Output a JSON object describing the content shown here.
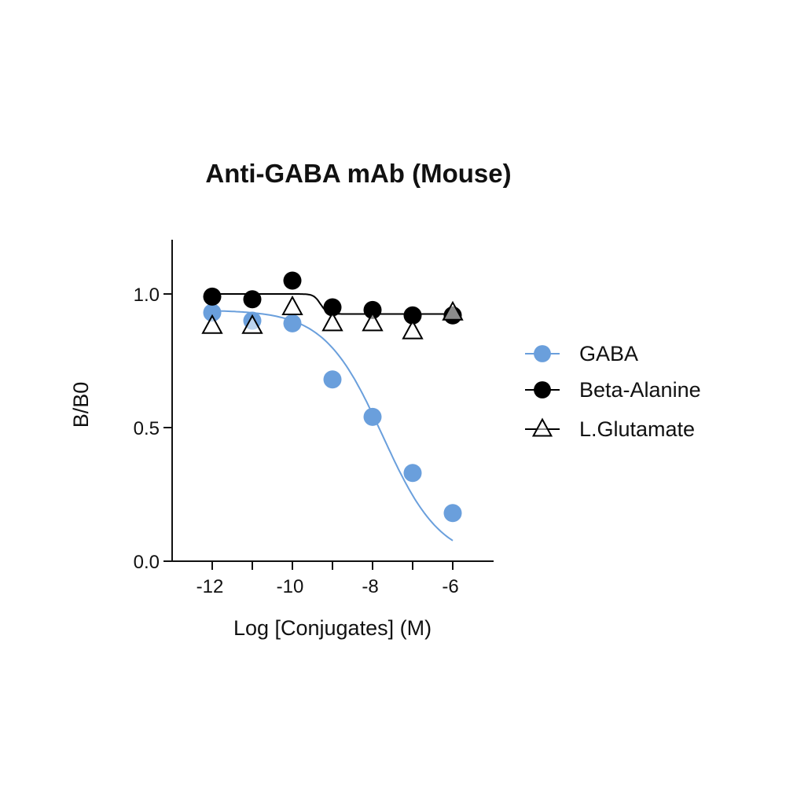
{
  "chart_data": {
    "type": "scatter",
    "title": "Anti-GABA mAb (Mouse)",
    "xlabel": "Log [Conjugates] (M)",
    "ylabel": "B/B0",
    "xlim": [
      -13,
      -5
    ],
    "ylim": [
      0,
      1.2
    ],
    "xticks": [
      -12,
      -10,
      -8,
      -6
    ],
    "xtick_labels": [
      "-12",
      "-10",
      "-8",
      "-6"
    ],
    "yticks": [
      0,
      0.5,
      1.0
    ],
    "ytick_labels": [
      "0.0",
      "0.5",
      "1.0"
    ],
    "grid": false,
    "legend_position": "right",
    "series": [
      {
        "name": "GABA",
        "marker": "filled-circle",
        "color": "#6a9fdc",
        "x": [
          -12,
          -11,
          -10,
          -9,
          -8,
          -7,
          -6
        ],
        "y": [
          0.93,
          0.9,
          0.89,
          0.68,
          0.54,
          0.33,
          0.18
        ],
        "fit": "sigmoid"
      },
      {
        "name": "Beta-Alanine",
        "marker": "filled-circle",
        "color": "#000000",
        "x": [
          -12,
          -11,
          -10,
          -9,
          -8,
          -7,
          -6
        ],
        "y": [
          0.99,
          0.98,
          1.05,
          0.95,
          0.94,
          0.92,
          0.92
        ],
        "fit": "step"
      },
      {
        "name": "L.Glutamate",
        "marker": "open-triangle",
        "color": "#000000",
        "x": [
          -12,
          -11,
          -10,
          -9,
          -8,
          -7,
          -6
        ],
        "y": [
          0.88,
          0.88,
          0.95,
          0.89,
          0.89,
          0.86,
          0.93
        ],
        "fit": "none"
      }
    ]
  }
}
